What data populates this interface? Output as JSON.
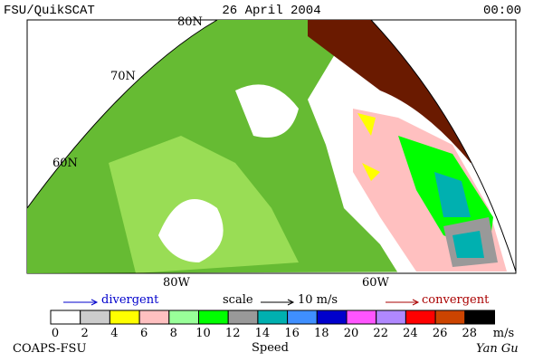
{
  "header": {
    "left": "FSU/QuikSCAT",
    "center": "26 April 2004",
    "right": "00:00"
  },
  "map": {
    "lat_labels": [
      "80N",
      "70N",
      "60N"
    ],
    "lon_labels": [
      "80W",
      "60W"
    ]
  },
  "key": {
    "divergent": "divergent",
    "scale": "scale",
    "scale_value": "10 m/s",
    "convergent": "convergent"
  },
  "colorbar": {
    "ticks": [
      0,
      2,
      4,
      6,
      8,
      10,
      12,
      14,
      16,
      18,
      20,
      22,
      24,
      26,
      28
    ],
    "unit": "m/s",
    "label": "Speed",
    "colors": [
      "#ffffff",
      "#cccccc",
      "#ffff00",
      "#ffc0c0",
      "#99ff99",
      "#00ff00",
      "#999999",
      "#00b0b0",
      "#3f8fff",
      "#0000cc",
      "#ff55ff",
      "#b088ff",
      "#ff0000",
      "#cc4400",
      "#000000"
    ]
  },
  "footer": {
    "left": "COAPS-FSU",
    "right": "Yan Gu"
  }
}
